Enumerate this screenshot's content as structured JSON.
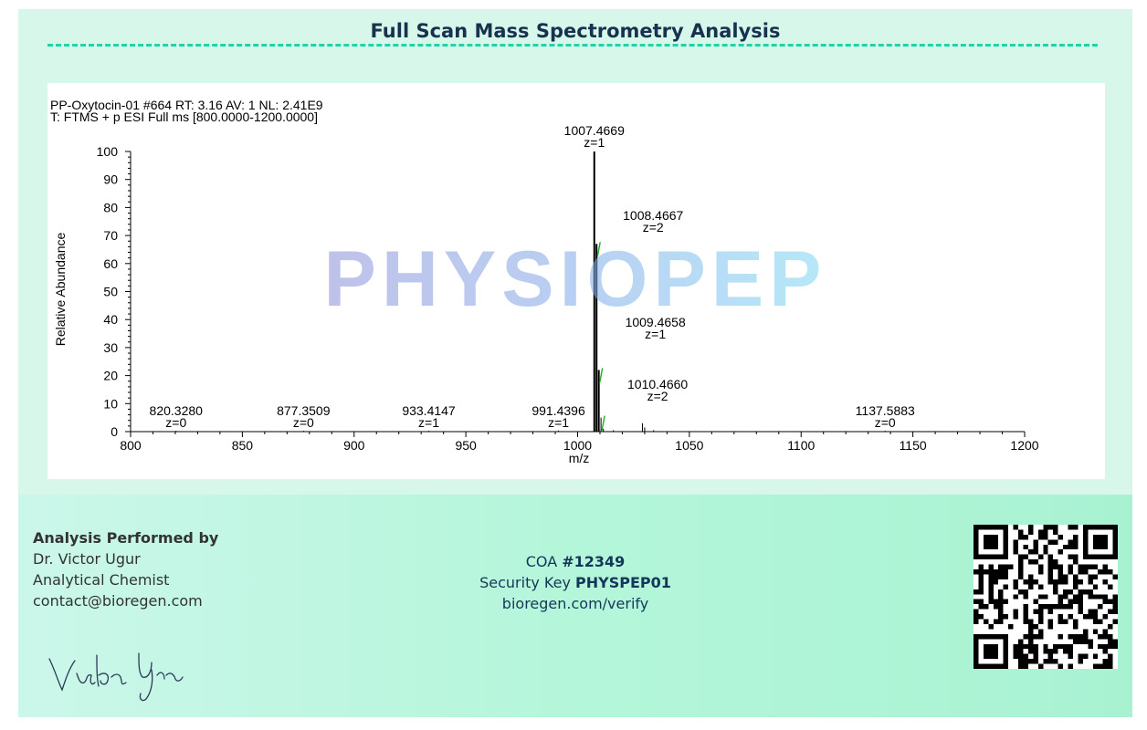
{
  "page_title": "Full Scan Mass Spectrometry Analysis",
  "chart_data": {
    "type": "line",
    "header_line1": "PP-Oxytocin-01 #664 RT: 3.16 AV: 1 NL: 2.41E9",
    "header_line2": "T: FTMS + p ESI Full ms [800.0000-1200.0000]",
    "xlabel": "m/z",
    "ylabel": "Relative Abundance",
    "xlim": [
      800,
      1200
    ],
    "ylim": [
      0,
      100
    ],
    "xticks": [
      800,
      850,
      900,
      950,
      1000,
      1050,
      1100,
      1150,
      1200
    ],
    "yticks": [
      0,
      10,
      20,
      30,
      40,
      50,
      60,
      70,
      80,
      90,
      100
    ],
    "peaks": [
      {
        "x": 1007.4669,
        "y": 100,
        "label": "1007.4669",
        "z": "z=1"
      },
      {
        "x": 1008.4667,
        "y": 67,
        "label": "1008.4667",
        "z": "z=2"
      },
      {
        "x": 1009.4658,
        "y": 22,
        "label": "1009.4658",
        "z": "z=1"
      },
      {
        "x": 1010.466,
        "y": 5,
        "label": "1010.4660",
        "z": "z=2"
      },
      {
        "x": 820.328,
        "y": 0.3,
        "label": "820.3280",
        "z": "z=0"
      },
      {
        "x": 877.3509,
        "y": 0.3,
        "label": "877.3509",
        "z": "z=0"
      },
      {
        "x": 933.4147,
        "y": 0.3,
        "label": "933.4147",
        "z": "z=1"
      },
      {
        "x": 991.4396,
        "y": 0.4,
        "label": "991.4396",
        "z": "z=1"
      },
      {
        "x": 1137.5883,
        "y": 0.3,
        "label": "1137.5883",
        "z": "z=0"
      }
    ],
    "minor_peaks": [
      {
        "x": 1011.5,
        "y": 1
      },
      {
        "x": 1016,
        "y": 0.5
      },
      {
        "x": 1029,
        "y": 3
      },
      {
        "x": 1030,
        "y": 1.5
      },
      {
        "x": 1034,
        "y": 0.5
      }
    ]
  },
  "watermark": "PHYSIOPEP",
  "analyst": {
    "header": "Analysis Performed by",
    "name": "Dr. Victor Ugur",
    "role": "Analytical Chemist",
    "email": "contact@bioregen.com"
  },
  "coa": {
    "coa_prefix": "COA ",
    "coa_number": "#12349",
    "key_prefix": "Security Key ",
    "key_value": "PHYSPEP01",
    "verify_url": "bioregen.com/verify"
  },
  "colors": {
    "title": "#17324f",
    "dash": "#22d3a6",
    "peak": "#000000",
    "isotope_tick": "#22aa22"
  },
  "icons": [
    "qr-code-icon",
    "signature-icon"
  ]
}
